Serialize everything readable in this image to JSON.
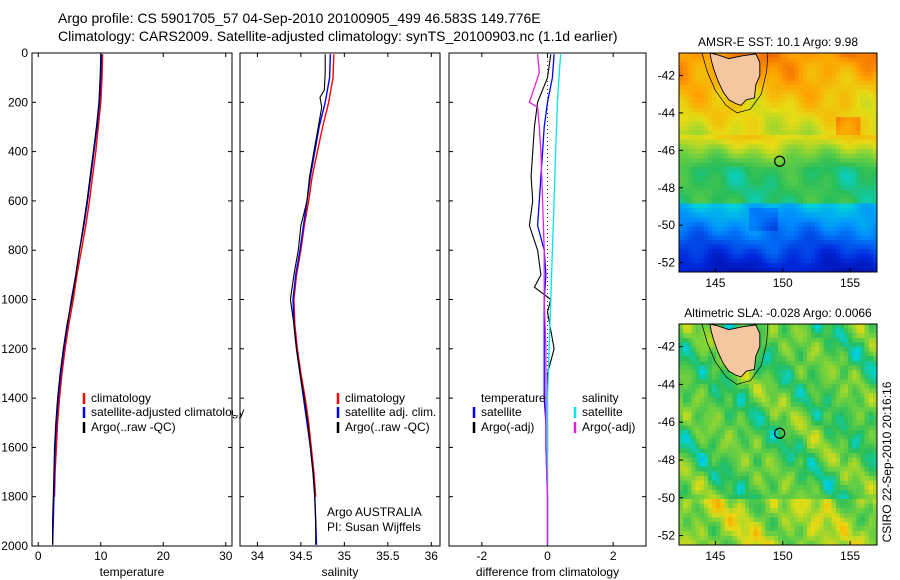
{
  "header": {
    "line1": "Argo profile: CS 5901705_57 04-Sep-2010 20100905_499 46.583S 149.776E",
    "line2": "Climatology: CARS2009. Satellite-adjusted climatology: synTS_20100903.nc (1.1d earlier)"
  },
  "colors": {
    "climatology": "#ff0000",
    "satellite": "#0000ff",
    "argo": "#000000",
    "salinity_satellite": "#00e5ee",
    "salinity_argo": "#e020e0",
    "land": "#f5c7a0"
  },
  "chart_data": [
    {
      "id": "temperature",
      "type": "line",
      "xlabel": "temperature",
      "ylabel": "",
      "xlim": [
        -1,
        31
      ],
      "ylim": [
        2000,
        0
      ],
      "xticks": [
        0,
        10,
        20,
        30
      ],
      "yticks": [
        0,
        200,
        400,
        600,
        800,
        1000,
        1200,
        1400,
        1600,
        1800,
        2000
      ],
      "legend": [
        "climatology",
        "satellite-adjusted climatology",
        "Argo(..raw -QC)"
      ],
      "series": [
        {
          "name": "climatology",
          "color": "#ff0000",
          "width": 1.4,
          "points": [
            [
              10.3,
              5
            ],
            [
              10.2,
              100
            ],
            [
              10.0,
              200
            ],
            [
              9.6,
              300
            ],
            [
              9.2,
              400
            ],
            [
              8.7,
              500
            ],
            [
              8.2,
              600
            ],
            [
              7.6,
              700
            ],
            [
              6.9,
              800
            ],
            [
              6.2,
              900
            ],
            [
              5.6,
              1000
            ],
            [
              4.9,
              1100
            ],
            [
              4.3,
              1200
            ],
            [
              3.8,
              1300
            ],
            [
              3.4,
              1400
            ],
            [
              3.1,
              1500
            ],
            [
              2.9,
              1600
            ],
            [
              2.7,
              1700
            ],
            [
              2.6,
              1800
            ]
          ]
        },
        {
          "name": "satellite-adjusted climatology",
          "color": "#0000ff",
          "width": 1.4,
          "points": [
            [
              10.1,
              5
            ],
            [
              10.0,
              100
            ],
            [
              9.8,
              200
            ],
            [
              9.4,
              300
            ],
            [
              8.9,
              400
            ],
            [
              8.4,
              500
            ],
            [
              7.9,
              600
            ],
            [
              7.3,
              700
            ],
            [
              6.6,
              800
            ],
            [
              6.0,
              900
            ],
            [
              5.3,
              1000
            ],
            [
              4.7,
              1100
            ],
            [
              4.1,
              1200
            ],
            [
              3.6,
              1300
            ],
            [
              3.2,
              1400
            ],
            [
              2.9,
              1500
            ],
            [
              2.7,
              1600
            ],
            [
              2.6,
              1700
            ],
            [
              2.5,
              1800
            ],
            [
              2.4,
              1900
            ],
            [
              2.3,
              1995
            ]
          ]
        },
        {
          "name": "Argo(..raw -QC)",
          "color": "#000000",
          "width": 1.1,
          "points": [
            [
              10.0,
              5
            ],
            [
              9.9,
              100
            ],
            [
              9.7,
              200
            ],
            [
              9.3,
              300
            ],
            [
              8.8,
              400
            ],
            [
              8.3,
              500
            ],
            [
              7.8,
              600
            ],
            [
              7.2,
              700
            ],
            [
              6.6,
              800
            ],
            [
              6.0,
              900
            ],
            [
              5.4,
              1000
            ],
            [
              4.6,
              1100
            ],
            [
              4.0,
              1200
            ],
            [
              3.5,
              1300
            ],
            [
              3.1,
              1400
            ],
            [
              2.8,
              1500
            ],
            [
              2.6,
              1600
            ],
            [
              2.5,
              1700
            ],
            [
              2.4,
              1800
            ],
            [
              2.3,
              1900
            ],
            [
              2.3,
              1995
            ]
          ]
        }
      ]
    },
    {
      "id": "salinity",
      "type": "line",
      "xlabel": "salinity",
      "ylabel": "",
      "xlim": [
        33.8,
        36.1
      ],
      "ylim": [
        2000,
        0
      ],
      "xticks": [
        34,
        34.5,
        35,
        35.5,
        36
      ],
      "yticks": [
        0,
        200,
        400,
        600,
        800,
        1000,
        1200,
        1400,
        1600,
        1800,
        2000
      ],
      "legend": [
        "climatology",
        "satellite adj. clim.",
        "Argo(..raw -QC)"
      ],
      "series": [
        {
          "name": "climatology",
          "color": "#ff0000",
          "width": 1.4,
          "points": [
            [
              34.88,
              5
            ],
            [
              34.87,
              100
            ],
            [
              34.82,
              200
            ],
            [
              34.75,
              300
            ],
            [
              34.69,
              400
            ],
            [
              34.63,
              500
            ],
            [
              34.59,
              600
            ],
            [
              34.54,
              700
            ],
            [
              34.5,
              800
            ],
            [
              34.45,
              900
            ],
            [
              34.42,
              1000
            ],
            [
              34.43,
              1100
            ],
            [
              34.46,
              1200
            ],
            [
              34.5,
              1300
            ],
            [
              34.55,
              1400
            ],
            [
              34.59,
              1500
            ],
            [
              34.62,
              1600
            ],
            [
              34.65,
              1700
            ],
            [
              34.67,
              1800
            ]
          ]
        },
        {
          "name": "satellite adj. clim.",
          "color": "#0000ff",
          "width": 1.4,
          "points": [
            [
              34.84,
              5
            ],
            [
              34.83,
              100
            ],
            [
              34.78,
              200
            ],
            [
              34.71,
              300
            ],
            [
              34.66,
              400
            ],
            [
              34.61,
              500
            ],
            [
              34.57,
              600
            ],
            [
              34.53,
              700
            ],
            [
              34.49,
              800
            ],
            [
              34.44,
              900
            ],
            [
              34.41,
              1000
            ],
            [
              34.42,
              1100
            ],
            [
              34.45,
              1200
            ],
            [
              34.49,
              1300
            ],
            [
              34.53,
              1400
            ],
            [
              34.57,
              1500
            ],
            [
              34.61,
              1600
            ],
            [
              34.64,
              1700
            ],
            [
              34.66,
              1800
            ],
            [
              34.67,
              1900
            ],
            [
              34.68,
              1995
            ]
          ]
        },
        {
          "name": "Argo(..raw -QC)",
          "color": "#000000",
          "width": 1.1,
          "points": [
            [
              34.78,
              5
            ],
            [
              34.78,
              80
            ],
            [
              34.77,
              150
            ],
            [
              34.72,
              180
            ],
            [
              34.74,
              220
            ],
            [
              34.7,
              300
            ],
            [
              34.65,
              400
            ],
            [
              34.6,
              500
            ],
            [
              34.57,
              600
            ],
            [
              34.5,
              700
            ],
            [
              34.47,
              800
            ],
            [
              34.42,
              900
            ],
            [
              34.38,
              1000
            ],
            [
              34.42,
              1100
            ],
            [
              34.45,
              1200
            ],
            [
              34.49,
              1300
            ],
            [
              34.54,
              1400
            ],
            [
              34.58,
              1500
            ],
            [
              34.61,
              1600
            ],
            [
              34.64,
              1700
            ],
            [
              34.66,
              1800
            ],
            [
              34.67,
              1900
            ],
            [
              34.67,
              1995
            ]
          ]
        }
      ]
    },
    {
      "id": "difference",
      "type": "line",
      "xlabel": "difference from climatology",
      "ylabel": "",
      "xlim": [
        -3,
        3
      ],
      "ylim": [
        2000,
        0
      ],
      "xticks": [
        -2,
        0,
        2
      ],
      "yticks": [
        0,
        200,
        400,
        600,
        800,
        1000,
        1200,
        1400,
        1600,
        1800,
        2000
      ],
      "legend": [
        "temperature",
        "satellite",
        "Argo(-adj)",
        "salinity",
        "satellite",
        "Argo(-adj)"
      ],
      "series": [
        {
          "name": "temperature satellite",
          "color": "#0000ff",
          "width": 1.3,
          "points": [
            [
              0.2,
              5
            ],
            [
              0.15,
              100
            ],
            [
              0.0,
              200
            ],
            [
              -0.1,
              300
            ],
            [
              -0.15,
              400
            ],
            [
              -0.2,
              500
            ],
            [
              -0.25,
              600
            ],
            [
              -0.3,
              700
            ],
            [
              -0.1,
              800
            ],
            [
              -0.05,
              900
            ],
            [
              -0.1,
              1000
            ],
            [
              -0.1,
              1100
            ],
            [
              -0.1,
              1200
            ],
            [
              -0.1,
              1300
            ],
            [
              -0.1,
              1400
            ],
            [
              -0.05,
              1500
            ],
            [
              -0.05,
              1600
            ],
            [
              0.0,
              1800
            ],
            [
              0.0,
              1995
            ]
          ]
        },
        {
          "name": "temperature Argo(-adj)",
          "color": "#000000",
          "width": 1.1,
          "points": [
            [
              0.1,
              5
            ],
            [
              0.0,
              100
            ],
            [
              -0.3,
              200
            ],
            [
              -0.4,
              300
            ],
            [
              -0.5,
              500
            ],
            [
              -0.45,
              600
            ],
            [
              -0.55,
              700
            ],
            [
              -0.3,
              800
            ],
            [
              -0.2,
              900
            ],
            [
              -0.4,
              950
            ],
            [
              0.1,
              1000
            ],
            [
              0.0,
              1050
            ],
            [
              0.2,
              1200
            ],
            [
              0.0,
              1300
            ],
            [
              0.0,
              1400
            ],
            [
              0.0,
              1600
            ],
            [
              0.0,
              1800
            ],
            [
              0.0,
              1995
            ]
          ]
        },
        {
          "name": "salinity satellite",
          "color": "#00e5ee",
          "width": 1.3,
          "points": [
            [
              0.4,
              5
            ],
            [
              0.35,
              100
            ],
            [
              0.3,
              200
            ],
            [
              0.25,
              400
            ],
            [
              0.2,
              600
            ],
            [
              0.15,
              800
            ],
            [
              0.1,
              1000
            ],
            [
              0.05,
              1200
            ],
            [
              0.0,
              1400
            ],
            [
              0.0,
              1600
            ],
            [
              0.0,
              1800
            ],
            [
              0.0,
              1995
            ]
          ]
        },
        {
          "name": "salinity Argo(-adj)",
          "color": "#e020e0",
          "width": 1.3,
          "points": [
            [
              -0.3,
              5
            ],
            [
              -0.25,
              80
            ],
            [
              -0.55,
              200
            ],
            [
              -0.3,
              220
            ],
            [
              -0.25,
              300
            ],
            [
              -0.2,
              400
            ],
            [
              -0.15,
              600
            ],
            [
              -0.1,
              800
            ],
            [
              -0.1,
              1000
            ],
            [
              -0.05,
              1200
            ],
            [
              -0.05,
              1400
            ],
            [
              -0.05,
              1600
            ],
            [
              0.0,
              1800
            ],
            [
              0.0,
              1995
            ]
          ]
        }
      ]
    },
    {
      "id": "sst_map",
      "type": "heatmap",
      "title": "AMSR-E SST: 10.1 Argo: 9.98",
      "xlim": [
        142.3,
        157
      ],
      "ylim": [
        -52.5,
        -40.8
      ],
      "xticks": [
        145,
        150,
        155
      ],
      "yticks": [
        -42,
        -44,
        -46,
        -48,
        -50,
        -52
      ],
      "marker": {
        "lon": 149.776,
        "lat": -46.583
      }
    },
    {
      "id": "sla_map",
      "type": "heatmap",
      "title": "Altimetric SLA: -0.028 Argo: 0.0066",
      "xlim": [
        142.3,
        157
      ],
      "ylim": [
        -52.5,
        -40.8
      ],
      "xticks": [
        145,
        150,
        155
      ],
      "yticks": [
        -42,
        -44,
        -46,
        -48,
        -50,
        -52
      ],
      "marker": {
        "lon": 149.776,
        "lat": -46.583
      }
    }
  ],
  "annotations": {
    "group": "Argo AUSTRALIA",
    "pi": "PI: Susan Wijffels",
    "credit": "CSIRO 22-Sep-2010 20:16:16"
  }
}
